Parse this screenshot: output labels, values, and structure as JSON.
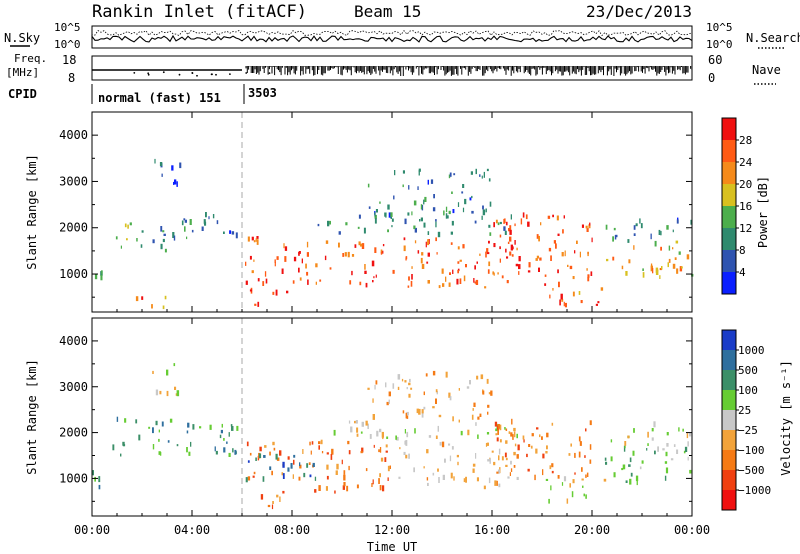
{
  "header": {
    "station": "Rankin Inlet (fitACF)",
    "beam": "Beam 15",
    "date": "23/Dec/2013"
  },
  "status_panels": {
    "nsky_label": "N.Sky",
    "nsearch_label": "N.Search",
    "noise_ticks": [
      "10^5",
      "10^0"
    ],
    "freq_label": "Freq.",
    "freq_unit": "[MHz]",
    "freq_ticks": [
      "18",
      "8"
    ],
    "nave_label": "Nave",
    "nave_ticks": [
      "60",
      "0"
    ],
    "cpid_label": "CPID",
    "cpid_entries": [
      {
        "label": "normal (fast) 151",
        "start_hour": 0
      },
      {
        "label": "3503",
        "start_hour": 6.1
      }
    ]
  },
  "chart_data": [
    {
      "type": "heatmap",
      "panel": "power",
      "xlabel": "",
      "ylabel": "Slant Range [km]",
      "xlim": [
        0,
        24
      ],
      "ylim": [
        180,
        4500
      ],
      "y_ticks": [
        1000,
        2000,
        3000,
        4000
      ],
      "colorbar_label": "Power [dB]",
      "colorbar_ticks": [
        "4",
        "8",
        "12",
        "16",
        "20",
        "24",
        "28"
      ],
      "colorbar_colors": [
        "#0a1fff",
        "#2f54b0",
        "#2f8a6e",
        "#4cae4c",
        "#d8c020",
        "#f58a1a",
        "#ff5a14",
        "#f01010"
      ],
      "value_range": [
        0,
        32
      ],
      "echo_regions": [
        {
          "t0": 0.0,
          "t1": 0.5,
          "r0": 800,
          "r1": 1500,
          "v": 9
        },
        {
          "t0": 0.8,
          "t1": 2.2,
          "r0": 1500,
          "r1": 2100,
          "v": 13
        },
        {
          "t0": 2.0,
          "t1": 3.5,
          "r0": 1500,
          "r1": 2000,
          "v": 11
        },
        {
          "t0": 3.0,
          "t1": 5.8,
          "r0": 1700,
          "r1": 2300,
          "v": 9
        },
        {
          "t0": 1.5,
          "t1": 3.0,
          "r0": 200,
          "r1": 500,
          "v": 24
        },
        {
          "t0": 2.4,
          "t1": 3.5,
          "r0": 2800,
          "r1": 3500,
          "v": 6
        },
        {
          "t0": 6.1,
          "t1": 17.0,
          "r0": 700,
          "r1": 1800,
          "v": 26
        },
        {
          "t0": 9.0,
          "t1": 17.0,
          "r0": 1850,
          "r1": 2250,
          "v": 10
        },
        {
          "t0": 11.0,
          "t1": 16.0,
          "r0": 2250,
          "r1": 3300,
          "v": 8
        },
        {
          "t0": 16.0,
          "t1": 20.0,
          "r0": 1000,
          "r1": 2300,
          "v": 27
        },
        {
          "t0": 18.0,
          "t1": 20.5,
          "r0": 300,
          "r1": 1000,
          "v": 25
        },
        {
          "t0": 20.5,
          "t1": 24.0,
          "r0": 900,
          "r1": 1700,
          "v": 20
        },
        {
          "t0": 20.5,
          "t1": 24.0,
          "r0": 1700,
          "r1": 2200,
          "v": 9
        },
        {
          "t0": 6.2,
          "t1": 7.8,
          "r0": 300,
          "r1": 700,
          "v": 28
        }
      ]
    },
    {
      "type": "heatmap",
      "panel": "velocity",
      "xlabel": "Time UT",
      "ylabel": "Slant Range [km]",
      "xlim": [
        0,
        24
      ],
      "ylim": [
        180,
        4500
      ],
      "x_ticks": [
        "00:00",
        "04:00",
        "08:00",
        "12:00",
        "16:00",
        "20:00",
        "00:00"
      ],
      "y_ticks": [
        1000,
        2000,
        3000,
        4000
      ],
      "colorbar_label": "Velocity [m s⁻¹]",
      "colorbar_ticks": [
        "1000",
        "500",
        "100",
        "25",
        "−25",
        "−100",
        "−500",
        "−1000"
      ],
      "colorbar_colors": [
        "#1a3cc8",
        "#2f6f9e",
        "#3b8f68",
        "#66cc33",
        "#c8c8c8",
        "#f2a33a",
        "#f57a14",
        "#f04010",
        "#f01010"
      ],
      "echo_regions": [
        {
          "t0": 0.0,
          "t1": 0.5,
          "r0": 800,
          "r1": 1500,
          "c": 2
        },
        {
          "t0": 0.8,
          "t1": 5.8,
          "r0": 1500,
          "r1": 2300,
          "c": 2
        },
        {
          "t0": 2.4,
          "t1": 3.5,
          "r0": 2800,
          "r1": 3500,
          "c": 4
        },
        {
          "t0": 6.1,
          "t1": 12.0,
          "r0": 700,
          "r1": 1800,
          "c": 6
        },
        {
          "t0": 6.1,
          "t1": 9.0,
          "r0": 900,
          "r1": 1500,
          "c": 1
        },
        {
          "t0": 12.0,
          "t1": 17.0,
          "r0": 800,
          "r1": 1800,
          "c": 5
        },
        {
          "t0": 9.0,
          "t1": 17.0,
          "r0": 1850,
          "r1": 2250,
          "c": 4
        },
        {
          "t0": 11.0,
          "t1": 16.0,
          "r0": 2250,
          "r1": 3300,
          "c": 5
        },
        {
          "t0": 16.0,
          "t1": 20.0,
          "r0": 1000,
          "r1": 2300,
          "c": 6
        },
        {
          "t0": 18.0,
          "t1": 20.5,
          "r0": 500,
          "r1": 1000,
          "c": 4
        },
        {
          "t0": 20.5,
          "t1": 24.0,
          "r0": 900,
          "r1": 1700,
          "c": 3
        },
        {
          "t0": 20.5,
          "t1": 24.0,
          "r0": 1700,
          "r1": 2200,
          "c": 4
        },
        {
          "t0": 6.2,
          "t1": 7.8,
          "r0": 300,
          "r1": 700,
          "c": 6
        }
      ]
    }
  ]
}
